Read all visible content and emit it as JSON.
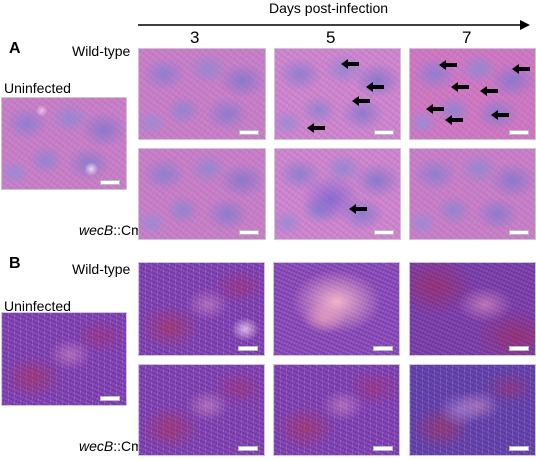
{
  "header": {
    "title": "Days post-infection",
    "days": [
      "3",
      "5",
      "7"
    ]
  },
  "panels": [
    {
      "letter": "A",
      "uninfected_label": "Uninfected",
      "rows": [
        {
          "label": "Wild-type"
        },
        {
          "label_gene": "wecB",
          "label_suffix": "::Cm"
        }
      ],
      "arrow_counts": {
        "wildtype_day5": 4,
        "wildtype_day7": 7,
        "mutant_day5": 1
      }
    },
    {
      "letter": "B",
      "uninfected_label": "Uninfected",
      "rows": [
        {
          "label": "Wild-type"
        },
        {
          "label_gene": "wecB",
          "label_suffix": "::Cm"
        }
      ]
    }
  ],
  "colors": {
    "he_stain_pink": "#c983c9",
    "he_stain_purple": "#8e4cb8",
    "arrow": "#000000"
  }
}
